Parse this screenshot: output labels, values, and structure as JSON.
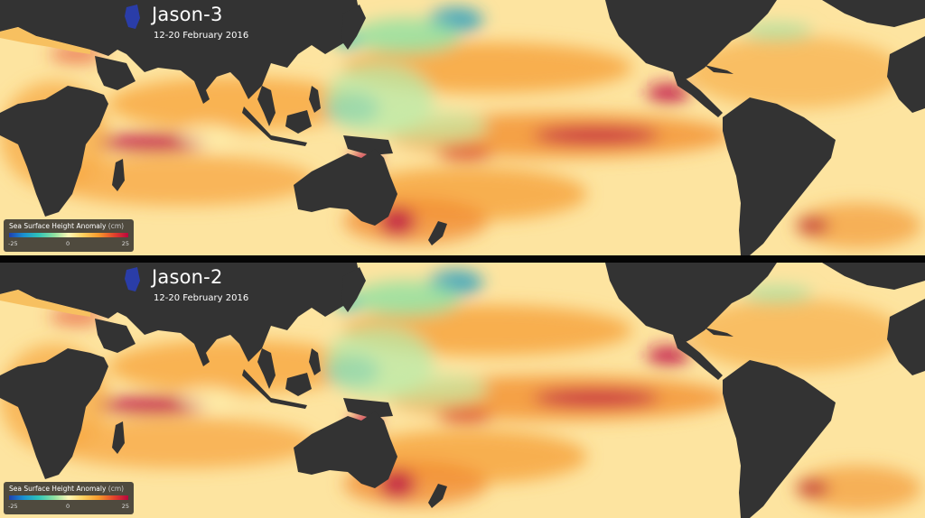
{
  "panels": [
    {
      "title": "Jason-3",
      "date_range": "12-20 February 2016",
      "legend": {
        "title": "Sea Surface Height Anomaly",
        "unit": "(cm)",
        "min": "-25",
        "mid": "0",
        "max": "25"
      }
    },
    {
      "title": "Jason-2",
      "date_range": "12-20 February 2016",
      "legend": {
        "title": "Sea Surface Height Anomaly",
        "unit": "(cm)",
        "min": "-25",
        "mid": "0",
        "max": "25"
      }
    }
  ],
  "colors": {
    "land": "#333333",
    "ocean_base": "#fde4a0",
    "ocean_warm": "#f7a640",
    "anomaly_high": "#c21847",
    "anomaly_low": "#6bd0a8",
    "anomaly_very_low": "#2b9fc0",
    "caspian": "#2a3da8"
  }
}
